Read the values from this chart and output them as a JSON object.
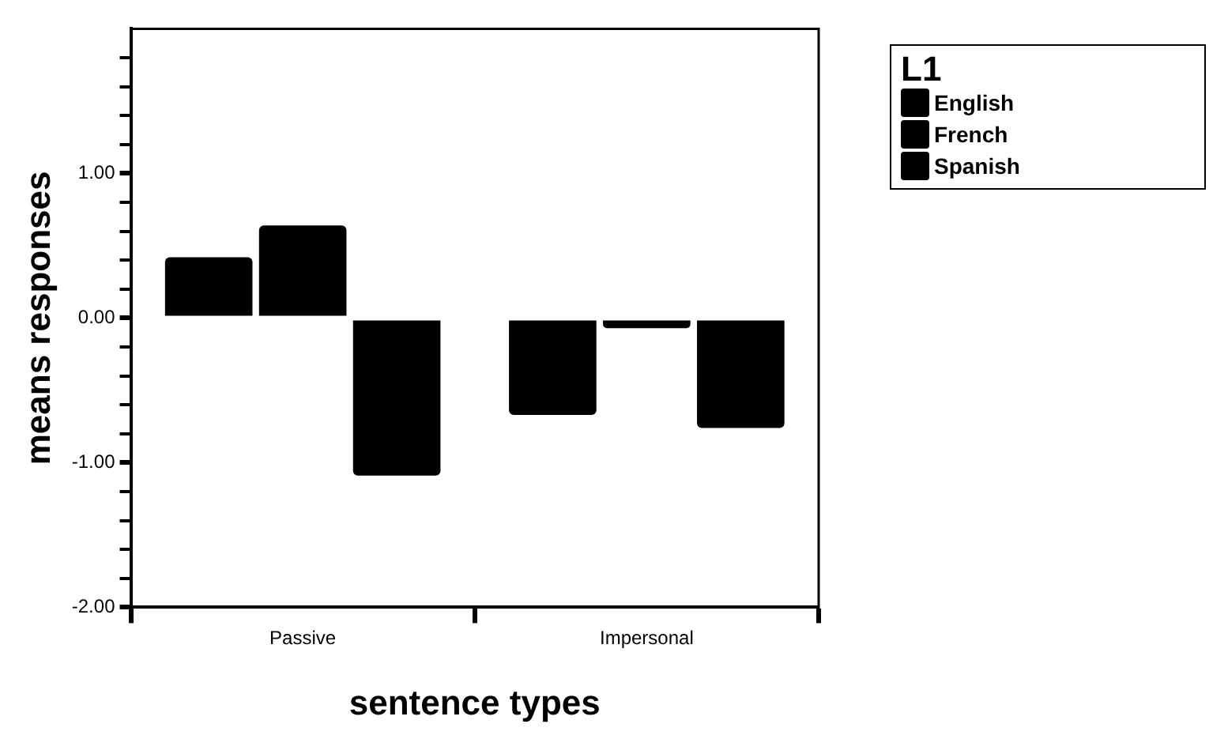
{
  "chart_data": {
    "type": "bar",
    "xlabel": "sentence types",
    "ylabel": "means responses",
    "legend_title": "L1",
    "legend": "top right",
    "grid": false,
    "categories": [
      "Passive",
      "Impersonal"
    ],
    "series": [
      {
        "name": "English",
        "color": "#000000",
        "values": [
          0.42,
          -0.67
        ]
      },
      {
        "name": "French",
        "color": "#000000",
        "values": [
          0.64,
          -0.07
        ]
      },
      {
        "name": "Spanish",
        "color": "#000000",
        "values": [
          -1.09,
          -0.76
        ]
      }
    ],
    "ylim": [
      -2,
      2
    ],
    "yticks": [
      {
        "value": -2,
        "label": "-2.00"
      },
      {
        "value": -1.8,
        "label": null
      },
      {
        "value": -1.6,
        "label": null
      },
      {
        "value": -1.4,
        "label": null
      },
      {
        "value": -1.2,
        "label": null
      },
      {
        "value": -1,
        "label": "-1.00"
      },
      {
        "value": -0.8,
        "label": null
      },
      {
        "value": -0.6,
        "label": null
      },
      {
        "value": -0.4,
        "label": null
      },
      {
        "value": -0.2,
        "label": null
      },
      {
        "value": 0,
        "label": "0.00"
      },
      {
        "value": 0.2,
        "label": null
      },
      {
        "value": 0.4,
        "label": null
      },
      {
        "value": 0.6,
        "label": null
      },
      {
        "value": 0.8,
        "label": null
      },
      {
        "value": 1,
        "label": "1.00"
      },
      {
        "value": 1.2,
        "label": null
      },
      {
        "value": 1.4,
        "label": null
      },
      {
        "value": 1.6,
        "label": null
      },
      {
        "value": 1.8,
        "label": null
      }
    ]
  }
}
